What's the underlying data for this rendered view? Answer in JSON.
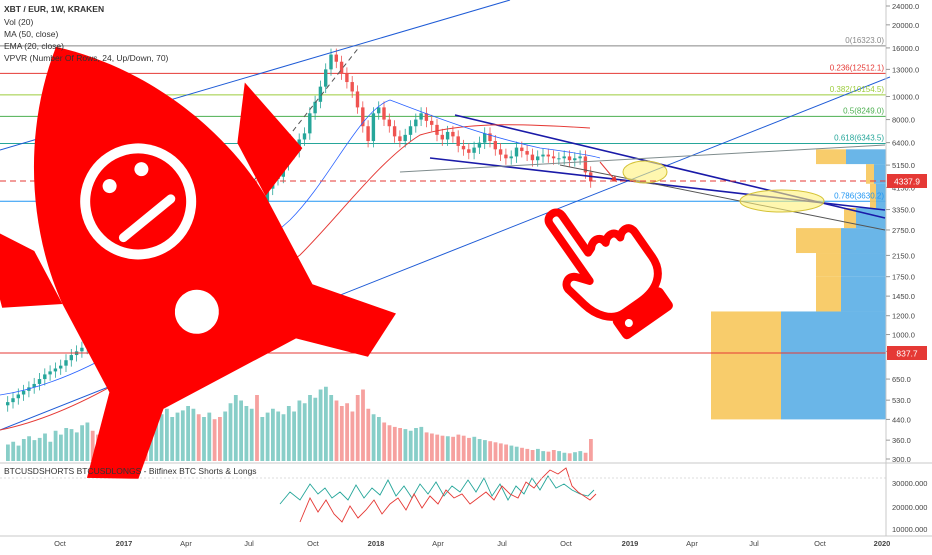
{
  "header": {
    "title": "XBT / EUR, 1W, KRAKEN",
    "indicators": [
      "Vol (20)",
      "MA (50, close)",
      "EMA (20, close)",
      "VPVR (Number Of Rows, 24, Up/Down, 70)"
    ]
  },
  "oscillator": {
    "title": "BTCUSDSHORTS BTCUSDLONGS - Bitfinex BTC Shorts & Longs",
    "axis_labels": [
      "30000.000",
      "20000.000",
      "10000.000"
    ]
  },
  "price_badges": {
    "current": "4337.9",
    "support": "837.7"
  },
  "colors": {
    "up": "#26a69a",
    "down": "#ef5350",
    "rocket": "#ff0000",
    "fib": "#4caf50",
    "trend": "#1e5bd6",
    "vpvr_up": "#5aaee6",
    "vpvr_down": "#f7c65b"
  },
  "fib_levels": [
    {
      "label": "0(16323.0)",
      "price": 16323,
      "color": "#888888"
    },
    {
      "label": "0.236(12512.1)",
      "price": 12512.1,
      "color": "#e53935"
    },
    {
      "label": "0.382(10154.5)",
      "price": 10154.5,
      "color": "#9ccc3c"
    },
    {
      "label": "0.5(8249.0)",
      "price": 8249,
      "color": "#4caf50"
    },
    {
      "label": "0.618(6343.5)",
      "price": 6343.5,
      "color": "#26a69a"
    },
    {
      "label": "0.786(3630.2)",
      "price": 3630.2,
      "color": "#2196f3"
    }
  ],
  "chart_data": {
    "type": "candlestick",
    "title": "XBT / EUR, 1W, KRAKEN",
    "y_scale": "log",
    "y_ticks": [
      "24000.0",
      "20000.0",
      "16000.0",
      "13000.0",
      "10000.0",
      "8000.0",
      "6400.0",
      "5150.0",
      "4150.0",
      "3350.0",
      "2750.0",
      "2150.0",
      "1750.0",
      "1450.0",
      "1200.0",
      "1000.0",
      "850.0",
      "650.0",
      "530.0",
      "440.0",
      "360.0",
      "300.0"
    ],
    "x_ticks": [
      "Oct",
      "2017",
      "Apr",
      "Jul",
      "Oct",
      "2018",
      "Apr",
      "Jul",
      "Oct",
      "2019",
      "Apr",
      "Jul",
      "Oct",
      "2020"
    ],
    "x_range": [
      "2016-08",
      "2020-01"
    ],
    "series": [
      {
        "name": "XBT/EUR",
        "close": [
          520,
          540,
          560,
          580,
          600,
          620,
          650,
          680,
          700,
          720,
          740,
          780,
          820,
          850,
          880,
          900,
          860,
          820,
          850,
          880,
          920,
          960,
          1000,
          1080,
          1150,
          1050,
          1000,
          1080,
          1180,
          1250,
          1400,
          1600,
          1750,
          2000,
          2300,
          2350,
          2100,
          2300,
          2500,
          2300,
          2250,
          2600,
          3200,
          3700,
          3800,
          4100,
          4200,
          3500,
          3600,
          4100,
          4500,
          4600,
          5200,
          5800,
          5900,
          6600,
          7000,
          8500,
          9500,
          11000,
          13000,
          15000,
          14000,
          12500,
          11500,
          10500,
          9000,
          7500,
          6500,
          8500,
          9000,
          8000,
          7500,
          6800,
          6500,
          6900,
          7500,
          8000,
          8500,
          7900,
          7600,
          6900,
          6600,
          7100,
          6800,
          6200,
          6000,
          5800,
          6100,
          6400,
          7000,
          6500,
          6000,
          5700,
          5500,
          5600,
          6100,
          5900,
          5700,
          5400,
          5600,
          5700,
          5600,
          5500,
          5500,
          5600,
          5400,
          5500,
          5600,
          4800,
          4400
        ]
      },
      {
        "name": "Vol (20)",
        "values": [
          30,
          35,
          28,
          40,
          45,
          38,
          42,
          50,
          35,
          55,
          48,
          60,
          58,
          52,
          65,
          70,
          55,
          48,
          50,
          58,
          62,
          68,
          75,
          88,
          90,
          80,
          72,
          70,
          78,
          85,
          95,
          80,
          88,
          92,
          100,
          95,
          85,
          80,
          88,
          76,
          80,
          90,
          105,
          120,
          110,
          100,
          95,
          120,
          80,
          88,
          95,
          90,
          85,
          100,
          90,
          110,
          105,
          120,
          115,
          130,
          135,
          120,
          110,
          100,
          105,
          90,
          120,
          130,
          95,
          85,
          80,
          70,
          65,
          62,
          60,
          58,
          55,
          60,
          62,
          52,
          50,
          48,
          46,
          45,
          44,
          48,
          46,
          42,
          44,
          40,
          38,
          36,
          34,
          32,
          30,
          28,
          26,
          24,
          22,
          20,
          22,
          18,
          17,
          20,
          18,
          15,
          14,
          16,
          18,
          15,
          40
        ]
      }
    ]
  }
}
